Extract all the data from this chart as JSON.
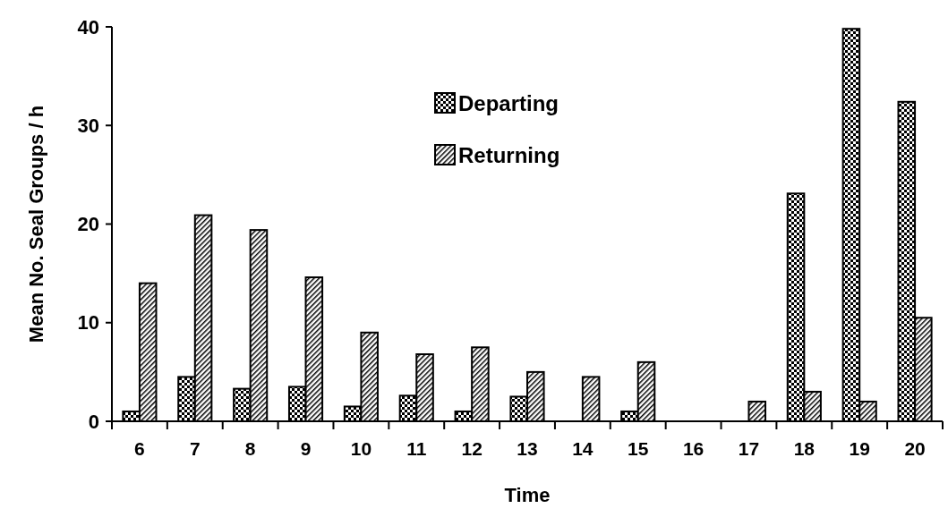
{
  "chart_data": {
    "type": "bar",
    "xlabel": "Time",
    "ylabel": "Mean No. Seal Groups / h",
    "categories": [
      "6",
      "7",
      "8",
      "9",
      "10",
      "11",
      "12",
      "13",
      "14",
      "15",
      "16",
      "17",
      "18",
      "19",
      "20"
    ],
    "series": [
      {
        "name": "Departing",
        "color": "#000000",
        "values": [
          1.0,
          4.5,
          3.3,
          3.5,
          1.5,
          2.6,
          1.0,
          2.5,
          0,
          1.0,
          0,
          0,
          23.1,
          39.8,
          32.4
        ]
      },
      {
        "name": "Returning",
        "color": "#000000",
        "values": [
          14.0,
          20.9,
          19.4,
          14.6,
          9.0,
          6.8,
          7.5,
          5.0,
          4.5,
          6.0,
          0,
          2.0,
          3.0,
          2.0,
          10.5
        ]
      }
    ],
    "ylim": [
      0,
      40
    ],
    "yticks": [
      0,
      10,
      20,
      30,
      40
    ],
    "grid": false,
    "legend": "top"
  }
}
